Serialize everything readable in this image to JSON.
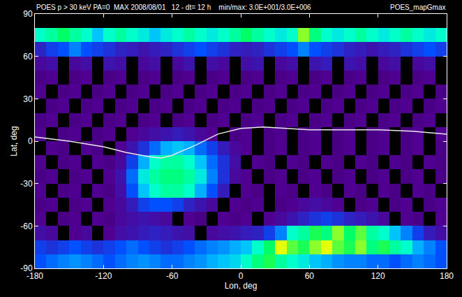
{
  "chart_data": {
    "type": "heatmap",
    "title": "POES p > 30 keV PA=0  MAX 2008/08/01   12 - dt= 12 h    min/max: 3.0E+001/3.0E+006",
    "subtitle": "POES_mapGmax",
    "x_label": "Lon, deg",
    "y_label": "Lat, deg",
    "xlim": [
      -180,
      180
    ],
    "xticks": [
      -180,
      -120,
      -60,
      0,
      60,
      120,
      180
    ],
    "ylim": [
      -90,
      90
    ],
    "yticks": [
      -90,
      -60,
      -30,
      0,
      30,
      60,
      90
    ],
    "zlim": [
      30,
      3000000
    ],
    "log": "z",
    "x": [
      -175,
      -165,
      -155,
      -145,
      -135,
      -125,
      -115,
      -105,
      -95,
      -85,
      -75,
      -65,
      -55,
      -45,
      -35,
      -25,
      -15,
      -5,
      5,
      15,
      25,
      35,
      45,
      55,
      65,
      75,
      85,
      95,
      105,
      115,
      125,
      135,
      145,
      155,
      165,
      175
    ],
    "y": [
      -85,
      -75,
      -65,
      -55,
      -45,
      -35,
      -25,
      -15,
      -5,
      5,
      15,
      25,
      35,
      45,
      55,
      65,
      75,
      85
    ],
    "cells": [
      [
        3000,
        4000,
        5000,
        6000,
        5000,
        4000,
        3000,
        4000,
        5000,
        6000,
        5000,
        4000,
        4000,
        5000,
        6000,
        8000,
        10000,
        12000,
        20000,
        40000,
        60000,
        30000,
        20000,
        15000,
        10000,
        8000,
        6000,
        5000,
        5000,
        4000,
        4000,
        3000,
        4000,
        5000,
        4000,
        3000
      ],
      [
        2000,
        1500,
        2000,
        3000,
        2000,
        1500,
        2000,
        3000,
        4000,
        3000,
        2000,
        1500,
        2000,
        3000,
        4000,
        5000,
        6000,
        8000,
        10000,
        20000,
        50000,
        150000,
        80000,
        60000,
        100000,
        150000,
        80000,
        60000,
        100000,
        40000,
        60000,
        30000,
        20000,
        8000,
        5000,
        3000
      ],
      [
        500,
        400,
        null,
        300,
        400,
        null,
        300,
        500,
        600,
        800,
        1000,
        800,
        600,
        500,
        null,
        400,
        500,
        600,
        800,
        1000,
        2000,
        5000,
        20000,
        30000,
        60000,
        40000,
        100000,
        50000,
        80000,
        30000,
        20000,
        10000,
        5000,
        2000,
        800,
        500
      ],
      [
        300,
        null,
        250,
        300,
        null,
        300,
        250,
        400,
        500,
        600,
        500,
        400,
        null,
        300,
        250,
        null,
        300,
        250,
        300,
        null,
        300,
        400,
        600,
        1000,
        1500,
        2000,
        1500,
        1000,
        800,
        600,
        400,
        null,
        300,
        250,
        null,
        300
      ],
      [
        250,
        300,
        null,
        250,
        300,
        null,
        300,
        400,
        800,
        2000,
        3000,
        3000,
        2000,
        1000,
        600,
        400,
        null,
        300,
        250,
        300,
        null,
        250,
        300,
        400,
        500,
        400,
        300,
        null,
        250,
        300,
        null,
        250,
        300,
        null,
        250,
        300
      ],
      [
        300,
        null,
        250,
        300,
        null,
        300,
        250,
        500,
        3000,
        10000,
        20000,
        30000,
        30000,
        20000,
        8000,
        3000,
        800,
        null,
        300,
        250,
        null,
        300,
        250,
        null,
        300,
        250,
        null,
        300,
        250,
        null,
        300,
        250,
        null,
        300,
        250,
        null
      ],
      [
        250,
        300,
        null,
        250,
        300,
        null,
        300,
        600,
        4000,
        15000,
        30000,
        40000,
        40000,
        30000,
        15000,
        5000,
        1500,
        400,
        300,
        null,
        250,
        300,
        null,
        250,
        300,
        null,
        250,
        300,
        null,
        250,
        300,
        null,
        250,
        300,
        null,
        250
      ],
      [
        300,
        null,
        250,
        300,
        null,
        300,
        250,
        400,
        2000,
        8000,
        20000,
        30000,
        30000,
        20000,
        10000,
        4000,
        1500,
        500,
        null,
        300,
        250,
        null,
        300,
        250,
        null,
        300,
        250,
        null,
        300,
        250,
        null,
        300,
        250,
        null,
        300,
        250
      ],
      [
        null,
        300,
        250,
        null,
        300,
        250,
        null,
        300,
        600,
        1500,
        4000,
        8000,
        10000,
        8000,
        4000,
        2000,
        800,
        400,
        300,
        null,
        250,
        300,
        null,
        250,
        300,
        null,
        250,
        300,
        null,
        250,
        300,
        null,
        250,
        300,
        null,
        250
      ],
      [
        300,
        null,
        250,
        300,
        null,
        250,
        300,
        null,
        300,
        400,
        500,
        600,
        800,
        600,
        400,
        300,
        null,
        250,
        300,
        null,
        250,
        300,
        null,
        250,
        300,
        null,
        250,
        300,
        null,
        250,
        300,
        null,
        250,
        300,
        null,
        300
      ],
      [
        250,
        300,
        null,
        250,
        300,
        null,
        250,
        300,
        null,
        250,
        300,
        null,
        250,
        300,
        null,
        250,
        300,
        null,
        250,
        300,
        null,
        250,
        300,
        null,
        250,
        300,
        null,
        250,
        300,
        null,
        250,
        300,
        null,
        250,
        300,
        null
      ],
      [
        null,
        250,
        300,
        null,
        250,
        300,
        null,
        250,
        300,
        null,
        250,
        300,
        null,
        250,
        300,
        null,
        250,
        300,
        null,
        250,
        300,
        null,
        250,
        300,
        null,
        250,
        300,
        null,
        250,
        300,
        null,
        250,
        300,
        null,
        250,
        300
      ],
      [
        300,
        null,
        250,
        300,
        null,
        250,
        300,
        null,
        250,
        300,
        null,
        250,
        300,
        null,
        250,
        300,
        null,
        250,
        300,
        null,
        250,
        300,
        null,
        250,
        300,
        null,
        250,
        300,
        null,
        250,
        300,
        null,
        250,
        300,
        null,
        250
      ],
      [
        250,
        300,
        null,
        250,
        300,
        null,
        250,
        300,
        null,
        250,
        300,
        null,
        250,
        300,
        null,
        250,
        300,
        null,
        250,
        300,
        null,
        250,
        300,
        null,
        250,
        300,
        null,
        250,
        300,
        null,
        250,
        300,
        null,
        250,
        300,
        null
      ],
      [
        400,
        500,
        null,
        400,
        500,
        null,
        600,
        500,
        null,
        400,
        500,
        null,
        400,
        600,
        null,
        500,
        400,
        null,
        500,
        600,
        null,
        400,
        500,
        null,
        600,
        800,
        null,
        600,
        500,
        null,
        400,
        500,
        null,
        400,
        500,
        null
      ],
      [
        1000,
        2000,
        3000,
        5000,
        3000,
        2000,
        1500,
        1000,
        800,
        600,
        800,
        1000,
        1500,
        2000,
        3000,
        2000,
        1500,
        1000,
        800,
        1000,
        1500,
        2000,
        3000,
        5000,
        3000,
        2000,
        1500,
        1000,
        800,
        600,
        800,
        1000,
        1500,
        2000,
        3000,
        2000
      ],
      [
        20000,
        30000,
        50000,
        30000,
        20000,
        10000,
        20000,
        30000,
        20000,
        15000,
        10000,
        15000,
        20000,
        30000,
        20000,
        15000,
        20000,
        30000,
        50000,
        30000,
        20000,
        15000,
        20000,
        100000,
        40000,
        20000,
        15000,
        20000,
        30000,
        20000,
        15000,
        20000,
        30000,
        20000,
        15000,
        20000
      ],
      [
        null,
        null,
        null,
        null,
        null,
        null,
        null,
        null,
        null,
        null,
        null,
        null,
        null,
        null,
        null,
        null,
        null,
        null,
        null,
        null,
        null,
        null,
        null,
        null,
        null,
        null,
        null,
        null,
        null,
        null,
        null,
        null,
        null,
        null,
        null,
        null
      ]
    ],
    "overlay": {
      "type": "line",
      "color": "#e8e8e8",
      "x": [
        -180,
        -150,
        -120,
        -100,
        -80,
        -70,
        -60,
        -40,
        -20,
        0,
        20,
        40,
        60,
        90,
        120,
        150,
        180
      ],
      "values": [
        3,
        0,
        -4,
        -8,
        -11,
        -12,
        -10,
        -3,
        5,
        9,
        10,
        9,
        8,
        8,
        8,
        7,
        5
      ]
    }
  }
}
